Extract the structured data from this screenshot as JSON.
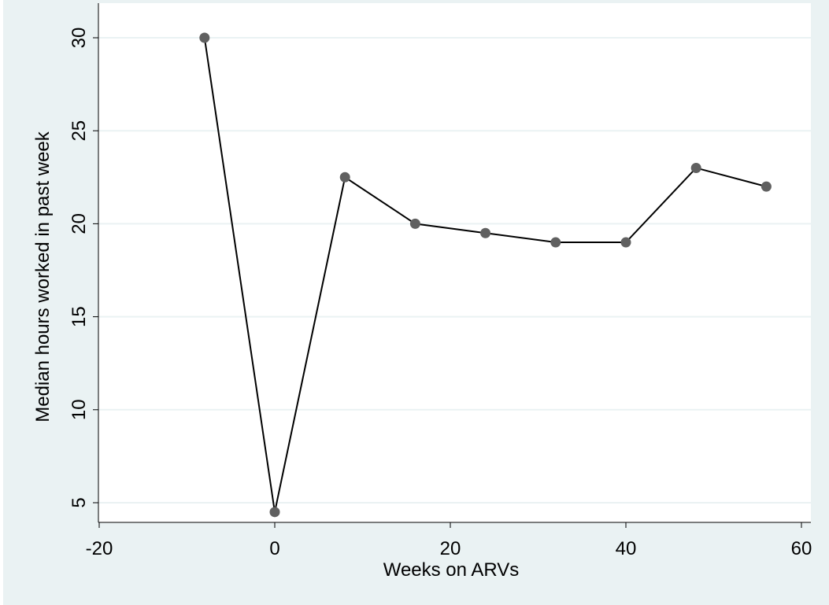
{
  "chart_data": {
    "type": "line",
    "title": "",
    "xlabel": "Weeks on ARVs",
    "ylabel": "Median hours worked in past week",
    "xlim": [
      -21,
      62
    ],
    "ylim": [
      4,
      31
    ],
    "xticks": [
      -20,
      0,
      20,
      40,
      60
    ],
    "yticks": [
      5,
      10,
      15,
      20,
      25,
      30
    ],
    "grid": "horizontal",
    "series": [
      {
        "x": [
          -8,
          0,
          8,
          16,
          24,
          32,
          40,
          48,
          56
        ],
        "y": [
          30,
          4.5,
          22.5,
          20,
          19.5,
          19,
          19,
          23,
          22
        ]
      }
    ]
  },
  "colors": {
    "frame_background": "#eaf2f3",
    "plot_background": "#ffffff",
    "gridline": "#eaf2f3",
    "line": "#000000",
    "marker": "#606060"
  }
}
